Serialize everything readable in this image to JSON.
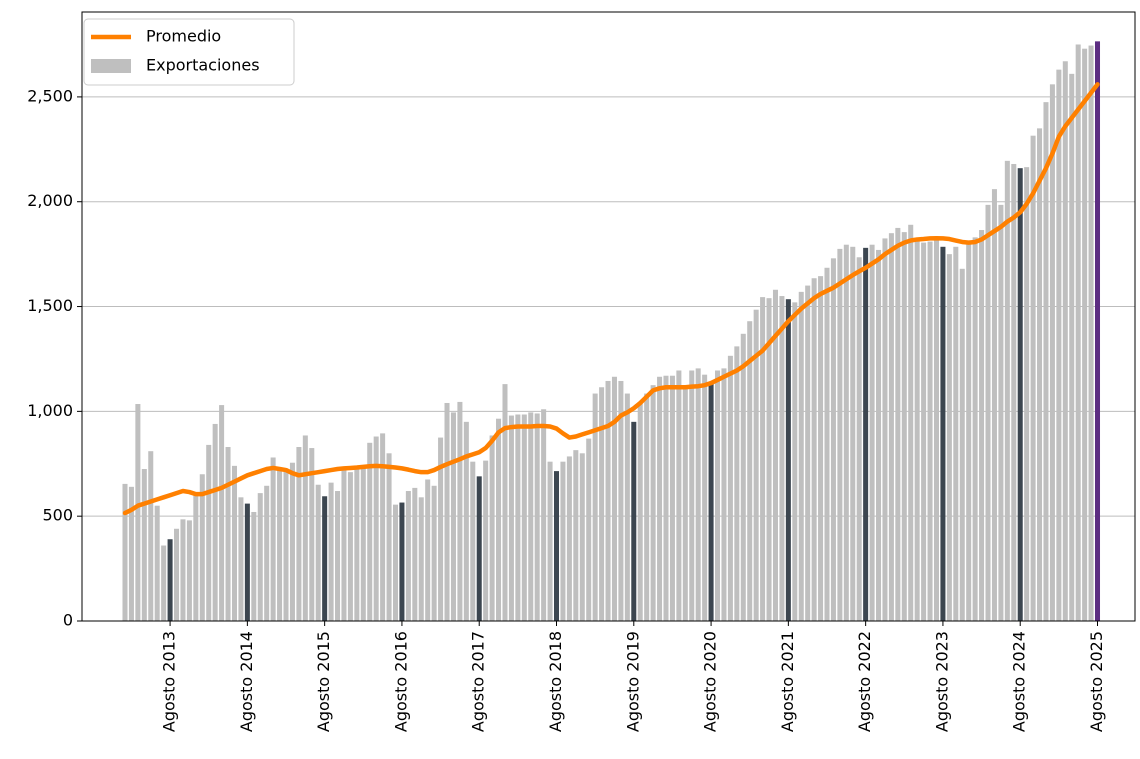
{
  "chart_data": {
    "type": "bar",
    "categories": [
      null,
      null,
      null,
      null,
      null,
      null,
      null,
      "Agosto 2013",
      null,
      null,
      null,
      null,
      null,
      null,
      null,
      null,
      null,
      null,
      null,
      "Agosto 2014",
      null,
      null,
      null,
      null,
      null,
      null,
      null,
      null,
      null,
      null,
      null,
      "Agosto 2015",
      null,
      null,
      null,
      null,
      null,
      null,
      null,
      null,
      null,
      null,
      null,
      "Agosto 2016",
      null,
      null,
      null,
      null,
      null,
      null,
      null,
      null,
      null,
      null,
      null,
      "Agosto 2017",
      null,
      null,
      null,
      null,
      null,
      null,
      null,
      null,
      null,
      null,
      null,
      "Agosto 2018",
      null,
      null,
      null,
      null,
      null,
      null,
      null,
      null,
      null,
      null,
      null,
      "Agosto 2019",
      null,
      null,
      null,
      null,
      null,
      null,
      null,
      null,
      null,
      null,
      null,
      "Agosto 2020",
      null,
      null,
      null,
      null,
      null,
      null,
      null,
      null,
      null,
      null,
      null,
      "Agosto 2021",
      null,
      null,
      null,
      null,
      null,
      null,
      null,
      null,
      null,
      null,
      null,
      "Agosto 2022",
      null,
      null,
      null,
      null,
      null,
      null,
      null,
      null,
      null,
      null,
      null,
      "Agosto 2023",
      null,
      null,
      null,
      null,
      null,
      null,
      null,
      null,
      null,
      null,
      null,
      "Agosto 2024",
      null,
      null,
      null,
      null,
      null,
      null,
      null,
      null,
      null,
      null,
      null,
      "Agosto 2025"
    ],
    "series": [
      {
        "name": "Promedio",
        "type": "line",
        "color": "#ff8000",
        "values": [
          515,
          530,
          550,
          560,
          570,
          580,
          590,
          600,
          610,
          620,
          615,
          605,
          605,
          615,
          625,
          635,
          650,
          665,
          680,
          695,
          705,
          715,
          725,
          730,
          725,
          720,
          705,
          695,
          700,
          705,
          710,
          715,
          720,
          725,
          728,
          730,
          732,
          735,
          738,
          740,
          738,
          735,
          732,
          728,
          722,
          715,
          710,
          710,
          720,
          735,
          748,
          760,
          772,
          785,
          795,
          805,
          825,
          860,
          900,
          920,
          925,
          928,
          928,
          928,
          930,
          930,
          928,
          918,
          895,
          875,
          880,
          890,
          900,
          910,
          920,
          930,
          950,
          980,
          995,
          1015,
          1040,
          1070,
          1100,
          1110,
          1115,
          1115,
          1115,
          1115,
          1118,
          1120,
          1125,
          1135,
          1150,
          1165,
          1180,
          1195,
          1215,
          1240,
          1265,
          1290,
          1325,
          1360,
          1395,
          1430,
          1460,
          1490,
          1515,
          1540,
          1560,
          1575,
          1590,
          1610,
          1630,
          1650,
          1668,
          1685,
          1705,
          1725,
          1750,
          1770,
          1790,
          1805,
          1815,
          1820,
          1822,
          1825,
          1826,
          1825,
          1822,
          1815,
          1808,
          1805,
          1808,
          1820,
          1840,
          1860,
          1880,
          1905,
          1925,
          1950,
          1990,
          2040,
          2100,
          2160,
          2230,
          2310,
          2360,
          2400,
          2440,
          2480,
          2520,
          2560
        ]
      },
      {
        "name": "Exportaciones",
        "type": "bar",
        "color": "#bfbfbf",
        "highlight_color": "#3c4650",
        "last_color": "#5c2d82",
        "values": [
          654,
          640,
          1035,
          725,
          810,
          550,
          360,
          390,
          440,
          485,
          480,
          600,
          700,
          840,
          940,
          1030,
          830,
          740,
          590,
          560,
          520,
          610,
          645,
          780,
          730,
          715,
          755,
          830,
          885,
          825,
          650,
          595,
          660,
          620,
          735,
          710,
          740,
          740,
          850,
          880,
          895,
          800,
          555,
          565,
          620,
          635,
          590,
          675,
          645,
          875,
          1040,
          995,
          1045,
          950,
          760,
          690,
          765,
          885,
          965,
          1130,
          980,
          985,
          985,
          995,
          990,
          1010,
          760,
          715,
          760,
          785,
          815,
          800,
          870,
          1085,
          1115,
          1145,
          1165,
          1145,
          1085,
          950,
          1040,
          1085,
          1125,
          1165,
          1170,
          1170,
          1195,
          1110,
          1195,
          1205,
          1175,
          1135,
          1195,
          1205,
          1265,
          1310,
          1370,
          1430,
          1485,
          1545,
          1540,
          1580,
          1550,
          1535,
          1520,
          1570,
          1600,
          1635,
          1645,
          1685,
          1730,
          1775,
          1795,
          1785,
          1735,
          1780,
          1795,
          1770,
          1825,
          1850,
          1875,
          1855,
          1890,
          1820,
          1805,
          1810,
          1820,
          1785,
          1750,
          1785,
          1680,
          1815,
          1830,
          1865,
          1985,
          2060,
          1985,
          2195,
          2180,
          2160,
          2165,
          2315,
          2350,
          2475,
          2560,
          2630,
          2670,
          2610,
          2750,
          2730,
          2745,
          2765
        ]
      }
    ],
    "ylim": [
      0,
      2905
    ],
    "yticks": [
      0,
      500,
      {
        "value": 1000,
        "label": "1,000"
      },
      {
        "value": 1500,
        "label": "1,500"
      },
      {
        "value": 2000,
        "label": "2,000"
      },
      {
        "value": 2500,
        "label": "2,500"
      }
    ],
    "grid": true,
    "legend": "upper left"
  }
}
